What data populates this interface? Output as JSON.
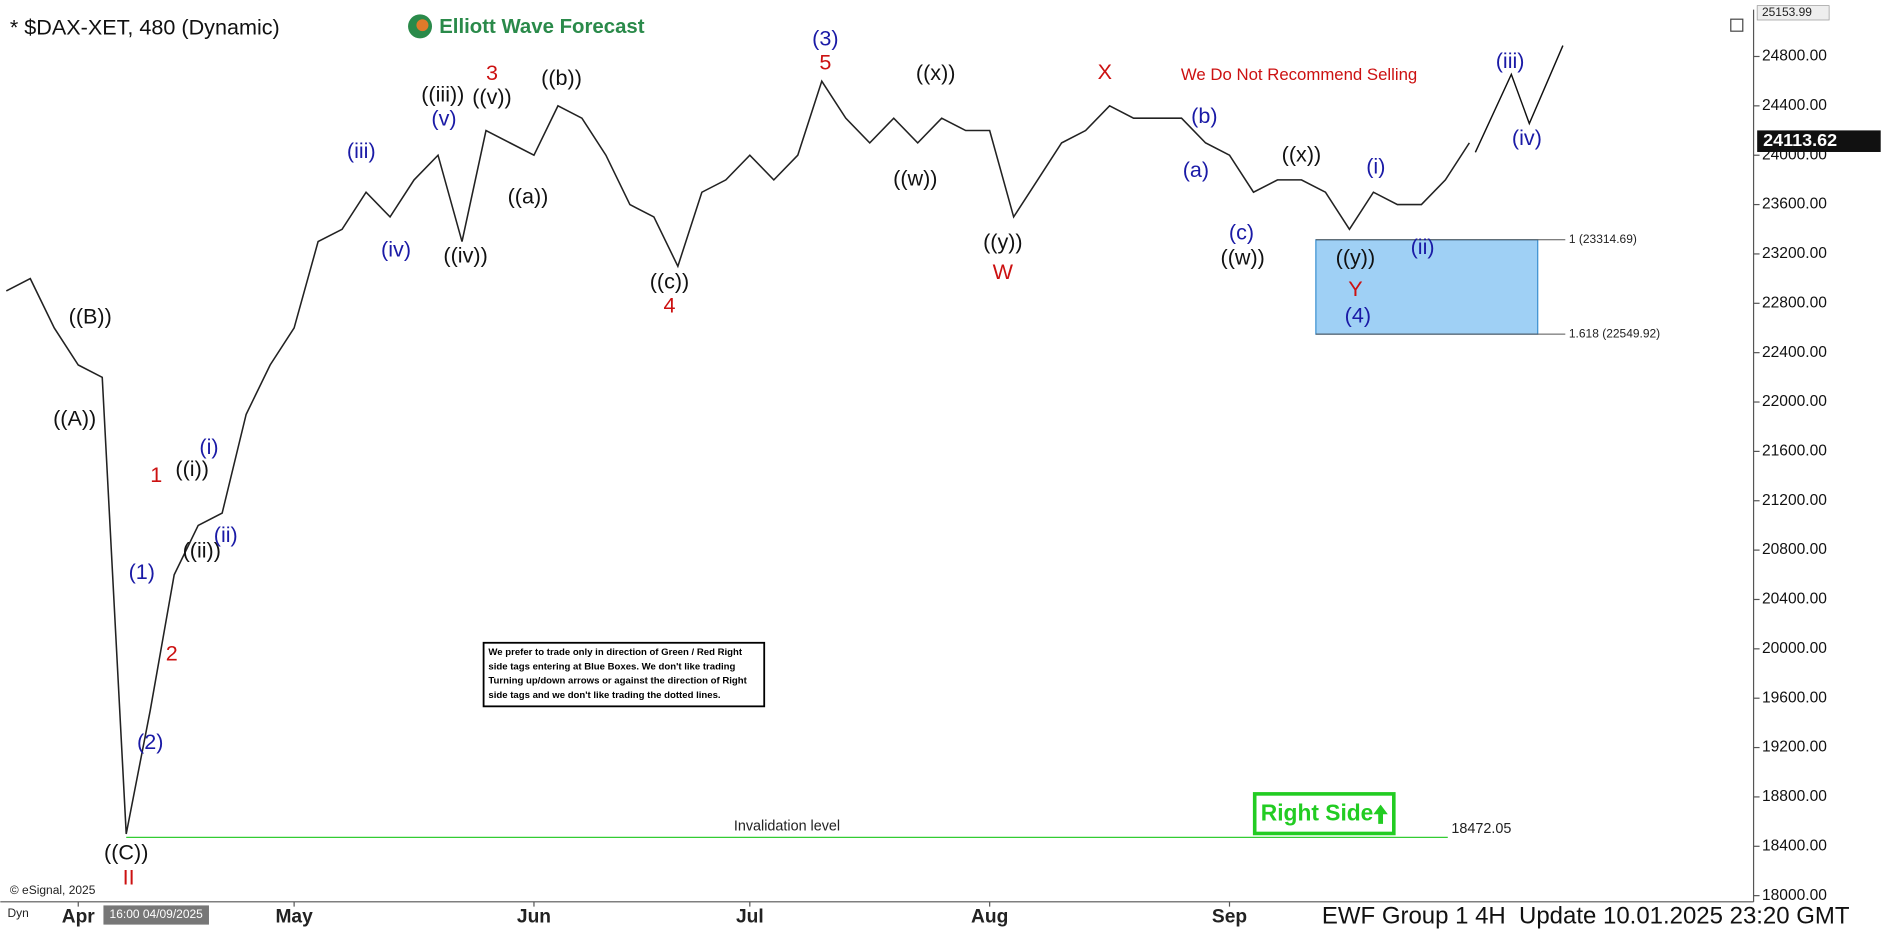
{
  "header": {
    "title": "* $DAX-XET, 480 (Dynamic)",
    "logo": "Elliott Wave Forecast",
    "footer": "EWF Group 1 4H  Update 10.01.2025 23:20 GMT",
    "copyright": "© eSignal, 2025",
    "cursor_label": "Dyn",
    "cursor_time": "16:00 04/09/2025"
  },
  "chart_data": {
    "type": "line",
    "color": "#222222",
    "categories": [
      null,
      null,
      null,
      "Apr",
      null,
      null,
      null,
      null,
      null,
      null,
      null,
      null,
      "May",
      null,
      null,
      null,
      null,
      null,
      null,
      null,
      null,
      null,
      "Jun",
      null,
      null,
      null,
      null,
      null,
      null,
      null,
      null,
      "Jul",
      null,
      null,
      null,
      null,
      null,
      null,
      null,
      null,
      null,
      "Aug",
      null,
      null,
      null,
      null,
      null,
      null,
      null,
      null,
      null,
      "Sep",
      null,
      null,
      null,
      null,
      null,
      null,
      null,
      null,
      null,
      null
    ],
    "values": [
      22900,
      23000,
      22600,
      22300,
      22200,
      18500,
      19500,
      20600,
      21000,
      21100,
      21900,
      22300,
      22600,
      23300,
      23400,
      23700,
      23500,
      23800,
      24000,
      23300,
      24200,
      24100,
      24000,
      24400,
      24300,
      24000,
      23600,
      23500,
      23100,
      23700,
      23800,
      24000,
      23800,
      24000,
      24600,
      24300,
      24100,
      24300,
      24100,
      24300,
      24200,
      24200,
      23500,
      23800,
      24100,
      24200,
      24400,
      24300,
      24300,
      24300,
      24100,
      24000,
      23700,
      23800,
      23800,
      23700,
      23400,
      23700,
      23600,
      23600,
      23800,
      24100
    ],
    "ylim": [
      17950,
      25180
    ],
    "yticks": [
      {
        "value": 18000,
        "label": "18000.00"
      },
      {
        "value": 18400,
        "label": "18400.00"
      },
      {
        "value": 18800,
        "label": "18800.00"
      },
      {
        "value": 19200,
        "label": "19200.00"
      },
      {
        "value": 19600,
        "label": "19600.00"
      },
      {
        "value": 20000,
        "label": "20000.00"
      },
      {
        "value": 20400,
        "label": "20400.00"
      },
      {
        "value": 20800,
        "label": "20800.00"
      },
      {
        "value": 21200,
        "label": "21200.00"
      },
      {
        "value": 21600,
        "label": "21600.00"
      },
      {
        "value": 22000,
        "label": "22000.00"
      },
      {
        "value": 22400,
        "label": "22400.00"
      },
      {
        "value": 22800,
        "label": "22800.00"
      },
      {
        "value": 23200,
        "label": "23200.00"
      },
      {
        "value": 23600,
        "label": "23600.00"
      },
      {
        "value": 24000,
        "label": "24000.00"
      },
      {
        "value": 24400,
        "label": "24400.00"
      },
      {
        "value": 24800,
        "label": "24800.00"
      }
    ],
    "grid": false,
    "last_price": 24113.62,
    "high": 25153.99,
    "blue_box": [
      {
        "value": 23314.69,
        "label": "1 (23314.69)"
      },
      {
        "value": 22549.92,
        "label": "1.618 (22549.92)"
      }
    ],
    "invalidation": {
      "value": 18472.05,
      "text": "Invalidation level"
    },
    "warning": "We Do Not Recommend Selling",
    "right_side": "Right Side",
    "note": [
      "We prefer to trade only in direction of Green / Red Right",
      "side tags entering at Blue Boxes. We don't like trading",
      "Turning up/down arrows or against the direction of Right",
      "side tags and we don't like trading the dotted lines."
    ],
    "annotations": [
      {
        "text": "((B))",
        "color": "#111111"
      },
      {
        "text": "((A))",
        "color": "#111111"
      },
      {
        "text": "((C))",
        "color": "#111111"
      },
      {
        "text": "II",
        "color": "#cc1111"
      },
      {
        "text": "(1)",
        "color": "#1a1aa6"
      },
      {
        "text": "(2)",
        "color": "#1a1aa6"
      },
      {
        "text": "1",
        "color": "#cc1111"
      },
      {
        "text": "2",
        "color": "#cc1111"
      },
      {
        "text": "((i))",
        "color": "#111111"
      },
      {
        "text": "(i)",
        "color": "#1a1aa6"
      },
      {
        "text": "((ii))",
        "color": "#111111"
      },
      {
        "text": "(ii)",
        "color": "#1a1aa6"
      },
      {
        "text": "(iii)",
        "color": "#1a1aa6"
      },
      {
        "text": "(iv)",
        "color": "#1a1aa6"
      },
      {
        "text": "((iii))",
        "color": "#111111"
      },
      {
        "text": "(v)",
        "color": "#1a1aa6"
      },
      {
        "text": "((v))",
        "color": "#111111"
      },
      {
        "text": "3",
        "color": "#cc1111"
      },
      {
        "text": "((iv))",
        "color": "#111111"
      },
      {
        "text": "((b))",
        "color": "#111111"
      },
      {
        "text": "((a))",
        "color": "#111111"
      },
      {
        "text": "((c))",
        "color": "#111111"
      },
      {
        "text": "4",
        "color": "#cc1111"
      },
      {
        "text": "(3)",
        "color": "#1a1aa6"
      },
      {
        "text": "5",
        "color": "#cc1111"
      },
      {
        "text": "((x))",
        "color": "#111111"
      },
      {
        "text": "((w))",
        "color": "#111111"
      },
      {
        "text": "((y))",
        "color": "#111111"
      },
      {
        "text": "W",
        "color": "#cc1111"
      },
      {
        "text": "X",
        "color": "#cc1111"
      },
      {
        "text": "(b)",
        "color": "#1a1aa6"
      },
      {
        "text": "(a)",
        "color": "#1a1aa6"
      },
      {
        "text": "(c)",
        "color": "#1a1aa6"
      },
      {
        "text": "((w))",
        "color": "#111111"
      },
      {
        "text": "((x))",
        "color": "#111111"
      },
      {
        "text": "(i)",
        "color": "#1a1aa6"
      },
      {
        "text": "((y))",
        "color": "#111111"
      },
      {
        "text": "(ii)",
        "color": "#1a1aa6"
      },
      {
        "text": "Y",
        "color": "#cc1111"
      },
      {
        "text": "(4)",
        "color": "#1a1aa6"
      },
      {
        "text": "(iii)",
        "color": "#1a1aa6"
      },
      {
        "text": "(iv)",
        "color": "#1a1aa6"
      }
    ]
  }
}
